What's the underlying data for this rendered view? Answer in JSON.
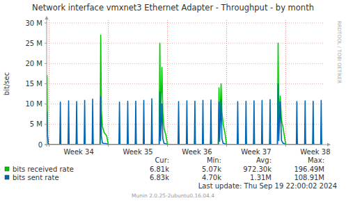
{
  "chart_data": {
    "type": "line",
    "title": "Network interface vmxnet3 Ethernet Adapter - Throughput - by month",
    "y_label": "bit/sec",
    "side_label": "RRDTOOL / TOBI OETIKER",
    "last_update": "Last update:  Thu Sep 19 22:00:02 2024",
    "footer": "Munin 2.0.25-2ubuntu0.16.04.4",
    "stats_headers": [
      "Cur:",
      "Min:",
      "Avg:",
      "Max:"
    ],
    "grid": true,
    "xlim": [
      -0.3,
      32.5
    ],
    "xticks": [
      {
        "value": 0,
        "label": "Week 34"
      },
      {
        "value": 7,
        "label": "Week 35"
      },
      {
        "value": 14,
        "label": "Week 36"
      },
      {
        "value": 21,
        "label": "Week 37"
      },
      {
        "value": 28,
        "label": "Week 38"
      }
    ],
    "ylim": [
      0,
      30000000
    ],
    "yticks": [
      {
        "value": 0,
        "label": "0"
      },
      {
        "value": 5000000,
        "label": "5 M"
      },
      {
        "value": 10000000,
        "label": "10 M"
      },
      {
        "value": 15000000,
        "label": "15 M"
      },
      {
        "value": 20000000,
        "label": "20 M"
      },
      {
        "value": 25000000,
        "label": "25 M"
      },
      {
        "value": 30000000,
        "label": "30 M"
      }
    ],
    "x": [
      -0.3,
      -0.25,
      -0.2,
      -0.1,
      1.26,
      1.32,
      1.38,
      2.24,
      2.3,
      2.36,
      3.19,
      3.25,
      3.31,
      4.14,
      4.2,
      4.26,
      5.09,
      5.15,
      5.21,
      6.02,
      6.1,
      6.18,
      6.3,
      6.5,
      6.8,
      7.0,
      8.26,
      8.32,
      8.38,
      9.24,
      9.3,
      9.36,
      10.19,
      10.25,
      10.31,
      11.14,
      11.2,
      11.26,
      12.09,
      12.15,
      12.21,
      13.02,
      13.1,
      13.18,
      13.35,
      13.45,
      13.6,
      13.8,
      14.0,
      15.26,
      15.32,
      15.38,
      16.24,
      16.3,
      16.36,
      17.19,
      17.25,
      17.31,
      18.14,
      18.2,
      18.26,
      19.09,
      19.15,
      19.21,
      20.02,
      20.1,
      20.18,
      20.35,
      20.45,
      20.6,
      20.8,
      21.0,
      22.26,
      22.32,
      22.38,
      23.24,
      23.3,
      23.36,
      24.19,
      24.25,
      24.31,
      25.14,
      25.2,
      25.26,
      26.09,
      26.15,
      26.21,
      27.02,
      27.1,
      27.18,
      27.35,
      27.5,
      27.7,
      27.85,
      28.0,
      29.26,
      29.32,
      29.38,
      30.24,
      30.3,
      30.36,
      31.19,
      31.25,
      31.31,
      32.14,
      32.2,
      32.26
    ],
    "series": [
      {
        "name": "bits received rate",
        "color": "#00cc00",
        "stats": [
          "6.81k",
          "5.07k",
          "972.30k",
          "196.49M"
        ],
        "values": [
          8000000,
          17000000,
          3000000,
          7000,
          7000,
          1500000,
          7000,
          7000,
          1800000,
          7000,
          7000,
          1600000,
          7000,
          7000,
          1700000,
          7000,
          7000,
          2000000,
          7000,
          7000,
          27000000,
          8000000,
          4500000,
          3000000,
          2200000,
          7000,
          7000,
          1500000,
          7000,
          7000,
          1600000,
          7000,
          7000,
          1700000,
          7000,
          7000,
          1500000,
          7000,
          7000,
          1900000,
          7000,
          7000,
          25000000,
          6000000,
          19000000,
          8000000,
          4000000,
          2500000,
          7000,
          7000,
          1500000,
          7000,
          7000,
          1600000,
          7000,
          7000,
          1800000,
          7000,
          7000,
          1600000,
          7000,
          7000,
          1700000,
          7000,
          7000,
          14000000,
          5000000,
          15000000,
          8000000,
          5000000,
          3000000,
          7000,
          7000,
          1600000,
          7000,
          7000,
          1500000,
          7000,
          7000,
          1700000,
          7000,
          7000,
          1600000,
          7000,
          7000,
          1800000,
          7000,
          7000,
          25000000,
          7000000,
          12000000,
          6000000,
          4000000,
          2000000,
          7000,
          7000,
          1600000,
          7000,
          7000,
          1500000,
          7000,
          7000,
          1700000,
          7000,
          7000,
          1600000,
          7000
        ]
      },
      {
        "name": "bits sent rate",
        "color": "#0066b3",
        "stats": [
          "6.83k",
          "4.70k",
          "1.31M",
          "108.91M"
        ],
        "values": [
          3000000,
          8000000,
          2000000,
          6800,
          6800,
          10500000,
          6800,
          6800,
          10800000,
          6800,
          6800,
          10600000,
          6800,
          6800,
          10900000,
          6800,
          6800,
          11200000,
          6800,
          6800,
          11800000,
          2000000,
          400000,
          300000,
          200000,
          6800,
          6800,
          10500000,
          6800,
          6800,
          10700000,
          6800,
          6800,
          10700000,
          6800,
          6800,
          10900000,
          6800,
          6800,
          11300000,
          6800,
          6800,
          13000000,
          1000000,
          10000000,
          1500000,
          300000,
          200000,
          6800,
          6800,
          10600000,
          6800,
          6800,
          10800000,
          6800,
          6800,
          10700000,
          6800,
          6800,
          10900000,
          6800,
          6800,
          11000000,
          6800,
          6800,
          10500000,
          800000,
          11000000,
          1500000,
          300000,
          200000,
          6800,
          6800,
          10600000,
          6800,
          6800,
          10700000,
          6800,
          6800,
          10800000,
          6800,
          6800,
          10900000,
          6800,
          6800,
          11100000,
          6800,
          6800,
          15000000,
          1000000,
          10500000,
          1000000,
          300000,
          200000,
          6800,
          6800,
          10600000,
          6800,
          6800,
          10800000,
          6800,
          6800,
          10700000,
          6800,
          6800,
          10900000,
          6800
        ]
      }
    ]
  }
}
